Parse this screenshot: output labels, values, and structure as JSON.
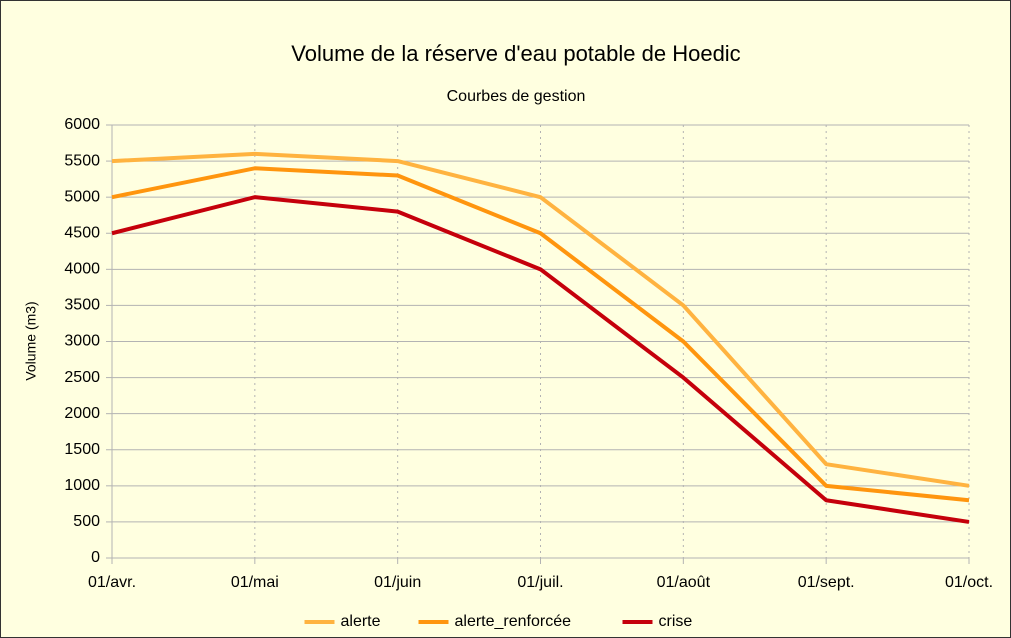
{
  "chart_data": {
    "type": "line",
    "title": "Volume de la réserve d'eau potable de Hoedic",
    "subtitle": "Courbes de gestion",
    "y_label": "Volume (m3)",
    "categories": [
      "01/avr.",
      "01/mai",
      "01/juin",
      "01/juil.",
      "01/août",
      "01/sept.",
      "01/oct."
    ],
    "series": [
      {
        "name": "alerte",
        "color": "#ffb340",
        "values": [
          5500,
          5600,
          5500,
          5000,
          3500,
          1300,
          1000
        ]
      },
      {
        "name": "alerte_renforcée",
        "color": "#ff950e",
        "values": [
          5000,
          5400,
          5300,
          4500,
          3000,
          1000,
          800
        ]
      },
      {
        "name": "crise",
        "color": "#c5000b",
        "values": [
          4500,
          5000,
          4800,
          4000,
          2500,
          800,
          500
        ]
      }
    ],
    "ylim": [
      0,
      6000
    ],
    "yticks": [
      0,
      500,
      1000,
      1500,
      2000,
      2500,
      3000,
      3500,
      4000,
      4500,
      5000,
      5500,
      6000
    ],
    "grid": true,
    "legend": "bottom"
  }
}
